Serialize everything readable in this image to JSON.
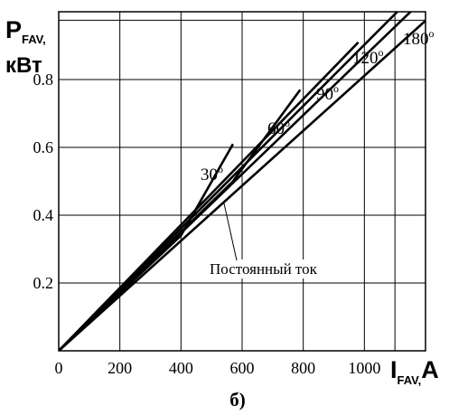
{
  "chart_data": {
    "type": "line",
    "ylabel_main": "P",
    "ylabel_sub": "FAV,",
    "ylabel_unit": "кВт",
    "xlabel_main": "I",
    "xlabel_sub": "FAV,",
    "xlabel_unit": "A",
    "caption": "б)",
    "xlim": [
      0,
      1200
    ],
    "ylim": [
      0,
      1.0
    ],
    "x_ticks": [
      "0",
      "200",
      "400",
      "600",
      "800",
      "1000"
    ],
    "x_tick_values": [
      0,
      200,
      400,
      600,
      800,
      1000
    ],
    "y_ticks": [
      "0.2",
      "0.4",
      "0.6",
      "0.8"
    ],
    "y_tick_values": [
      0.2,
      0.4,
      0.6,
      0.8
    ],
    "grid": true,
    "series": [
      {
        "name": "30°",
        "label_main": "30",
        "label_deg": "o",
        "x": [
          0,
          400,
          570
        ],
        "y": [
          0,
          0.34,
          0.61
        ]
      },
      {
        "name": "60°",
        "label_main": "60",
        "label_deg": "o",
        "x": [
          0,
          570,
          790
        ],
        "y": [
          0,
          0.5,
          0.77
        ]
      },
      {
        "name": "90°",
        "label_main": "90",
        "label_deg": "o",
        "x": [
          0,
          980
        ],
        "y": [
          0,
          0.91
        ]
      },
      {
        "name": "120°",
        "label_main": "120",
        "label_deg": "o",
        "x": [
          0,
          1130
        ],
        "y": [
          0,
          1.02
        ]
      },
      {
        "name": "180°",
        "label_main": "180",
        "label_deg": "o",
        "x": [
          0,
          1220
        ],
        "y": [
          0,
          1.06
        ]
      },
      {
        "name": "Постоянный ток",
        "label_main": "Постоянный ток",
        "label_deg": "",
        "x": [
          0,
          1220
        ],
        "y": [
          0,
          0.99
        ]
      }
    ]
  }
}
